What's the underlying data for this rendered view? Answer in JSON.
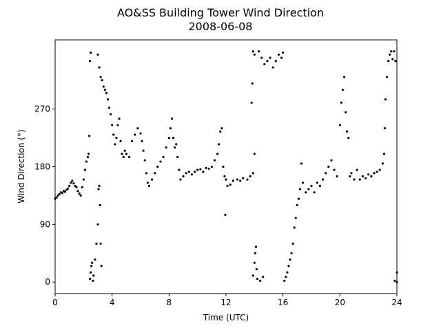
{
  "chart_data": {
    "type": "scatter",
    "title": "AO&SS Building Tower Wind Direction",
    "subtitle": "2008-06-08",
    "xlabel": "Time (UTC)",
    "ylabel": "Wind Direction (°)",
    "color": "#000000",
    "xlim": [
      0,
      24
    ],
    "xticks": [
      0,
      4,
      8,
      12,
      16,
      20,
      24
    ],
    "ylim": [
      -18,
      378
    ],
    "yticks": [
      0,
      90,
      180,
      270
    ],
    "x": [
      0,
      0.1,
      0.2,
      0.3,
      0.4,
      0.5,
      0.6,
      0.7,
      0.8,
      0.9,
      1.0,
      1.1,
      1.2,
      1.3,
      1.4,
      1.5,
      1.6,
      1.7,
      1.8,
      1.9,
      2.0,
      2.1,
      2.2,
      2.3,
      2.35,
      2.4,
      2.45,
      2.5,
      2.45,
      2.5,
      2.55,
      2.6,
      2.65,
      2.7,
      2.8,
      2.9,
      3.0,
      3.05,
      3.1,
      3.15,
      3.2,
      3.25,
      3.0,
      3.1,
      3.2,
      3.3,
      3.4,
      3.5,
      3.6,
      3.7,
      3.8,
      3.9,
      4.0,
      4.1,
      4.2,
      4.3,
      4.4,
      4.5,
      4.6,
      4.7,
      4.8,
      4.9,
      5.0,
      5.2,
      5.4,
      5.6,
      5.8,
      6.0,
      6.1,
      6.2,
      6.3,
      6.4,
      6.5,
      6.6,
      6.8,
      7.0,
      7.2,
      7.4,
      7.6,
      7.8,
      8.0,
      8.1,
      8.2,
      8.3,
      8.4,
      8.5,
      8.6,
      8.7,
      8.8,
      9.0,
      9.2,
      9.4,
      9.6,
      9.8,
      10.0,
      10.2,
      10.4,
      10.6,
      10.8,
      11.0,
      11.2,
      11.4,
      11.5,
      11.6,
      11.7,
      11.8,
      11.9,
      12.0,
      11.95,
      12.1,
      12.3,
      12.5,
      12.8,
      13.0,
      13.2,
      13.5,
      13.7,
      13.9,
      14.0,
      13.8,
      13.85,
      13.9,
      14.0,
      13.9,
      14.0,
      14.05,
      14.1,
      14.15,
      14.2,
      14.4,
      14.6,
      14.3,
      14.5,
      14.7,
      14.9,
      15.1,
      15.3,
      15.5,
      15.7,
      15.9,
      16.0,
      16.1,
      16.2,
      16.3,
      16.4,
      16.5,
      16.6,
      16.7,
      16.8,
      16.9,
      17.0,
      17.1,
      17.2,
      17.3,
      17.4,
      17.6,
      17.8,
      18.0,
      18.2,
      18.4,
      18.6,
      18.8,
      19.0,
      19.2,
      19.4,
      19.6,
      19.8,
      20.0,
      20.1,
      20.2,
      20.3,
      20.4,
      20.5,
      20.6,
      20.7,
      20.8,
      21.0,
      21.2,
      21.4,
      21.6,
      21.8,
      22.0,
      22.2,
      22.4,
      22.6,
      22.8,
      23.0,
      23.1,
      23.15,
      23.2,
      23.3,
      23.4,
      23.5,
      23.6,
      23.7,
      23.8,
      23.9,
      23.85,
      24.0,
      24.0
    ],
    "values": [
      130,
      132,
      135,
      137,
      140,
      139,
      142,
      141,
      144,
      146,
      150,
      155,
      158,
      154,
      150,
      148,
      142,
      138,
      135,
      148,
      160,
      175,
      188,
      195,
      200,
      228,
      345,
      358,
      5,
      15,
      25,
      30,
      2,
      10,
      35,
      60,
      90,
      145,
      150,
      120,
      60,
      25,
      355,
      335,
      320,
      315,
      305,
      300,
      295,
      285,
      272,
      262,
      245,
      230,
      215,
      225,
      245,
      255,
      220,
      200,
      195,
      205,
      200,
      195,
      220,
      230,
      240,
      232,
      220,
      205,
      190,
      170,
      155,
      150,
      160,
      170,
      180,
      188,
      195,
      210,
      225,
      240,
      255,
      225,
      210,
      215,
      195,
      175,
      160,
      165,
      170,
      172,
      168,
      172,
      175,
      176,
      172,
      178,
      177,
      180,
      190,
      200,
      215,
      235,
      240,
      180,
      165,
      160,
      105,
      150,
      152,
      158,
      160,
      158,
      162,
      160,
      165,
      170,
      200,
      280,
      310,
      360,
      355,
      10,
      30,
      45,
      55,
      20,
      5,
      2,
      8,
      360,
      350,
      340,
      345,
      350,
      335,
      345,
      355,
      350,
      358,
      2,
      8,
      15,
      25,
      35,
      45,
      60,
      85,
      100,
      120,
      130,
      145,
      185,
      155,
      140,
      145,
      150,
      140,
      155,
      150,
      160,
      170,
      180,
      190,
      175,
      165,
      245,
      280,
      300,
      320,
      265,
      235,
      225,
      165,
      170,
      160,
      175,
      160,
      165,
      162,
      168,
      165,
      170,
      172,
      175,
      185,
      200,
      240,
      285,
      320,
      345,
      355,
      360,
      348,
      360,
      345,
      2,
      0,
      15
    ]
  }
}
